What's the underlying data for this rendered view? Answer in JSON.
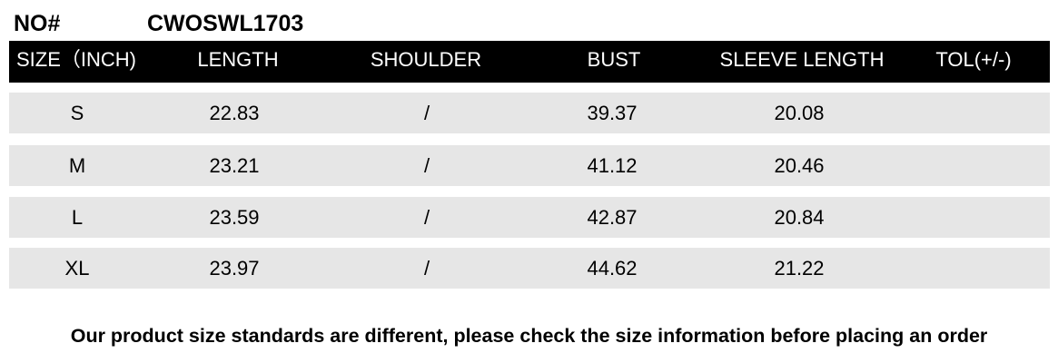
{
  "product": {
    "label": "NO#",
    "code": "CWOSWL1703"
  },
  "table": {
    "headers": [
      "SIZE（INCH)",
      "LENGTH",
      "SHOULDER",
      "BUST",
      "SLEEVE LENGTH",
      "TOL(+/-)"
    ],
    "rows": [
      [
        "S",
        "22.83",
        "/",
        "39.37",
        "20.08",
        ""
      ],
      [
        "M",
        "23.21",
        "/",
        "41.12",
        "20.46",
        ""
      ],
      [
        "L",
        "23.59",
        "/",
        "42.87",
        "20.84",
        ""
      ],
      [
        "XL",
        "23.97",
        "/",
        "44.62",
        "21.22",
        ""
      ]
    ],
    "colors": {
      "header_bg": "#000000",
      "header_text": "#ffffff",
      "row_bg": "#e6e6e6"
    }
  },
  "footer": "Our product size standards are different, please check the size information before placing an order"
}
